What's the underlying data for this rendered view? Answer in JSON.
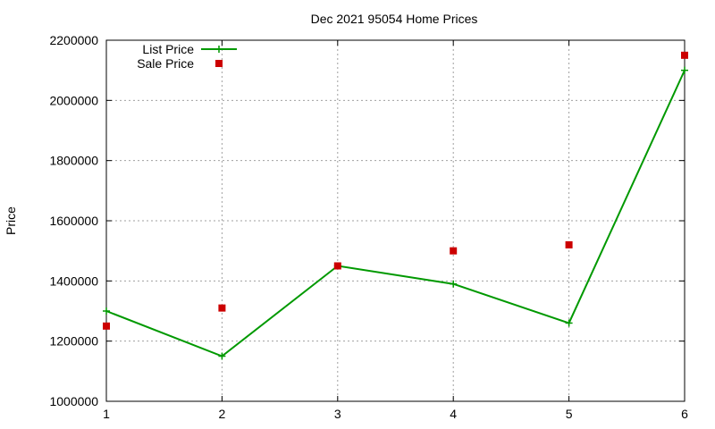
{
  "chart_data": {
    "type": "line",
    "title": "Dec 2021 95054 Home Prices",
    "xlabel": "",
    "ylabel": "Price",
    "x": [
      1,
      2,
      3,
      4,
      5,
      6
    ],
    "xlim": [
      1,
      6
    ],
    "ylim": [
      1000000,
      2200000
    ],
    "xticks": [
      "1",
      "2",
      "3",
      "4",
      "5",
      "6"
    ],
    "yticks": [
      "1000000",
      "1200000",
      "1400000",
      "1600000",
      "1800000",
      "2000000",
      "2200000"
    ],
    "grid": true,
    "legend_position": "top-left",
    "series": [
      {
        "name": "List Price",
        "style": "line+cross",
        "color": "#009900",
        "values": [
          1300000,
          1150000,
          1450000,
          1390000,
          1260000,
          2100000
        ]
      },
      {
        "name": "Sale Price",
        "style": "square-markers",
        "color": "#cc0000",
        "values": [
          1250000,
          1310000,
          1450000,
          1500000,
          1520000,
          2150000
        ]
      }
    ]
  }
}
